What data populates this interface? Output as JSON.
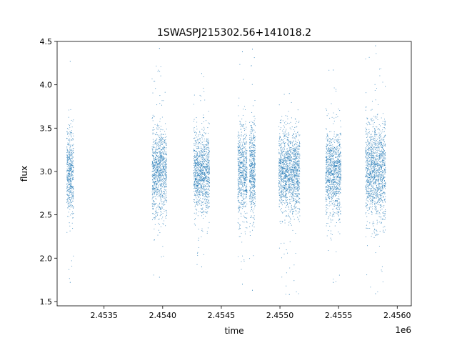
{
  "chart_data": {
    "type": "scatter",
    "title": "1SWASPJ215302.56+141018.2",
    "xlabel": "time",
    "ylabel": "flux",
    "x_offset_label": "1e6",
    "xlim": [
      2453100,
      2456120
    ],
    "ylim": [
      1.45,
      4.5
    ],
    "x_ticks": [
      2453500,
      2454000,
      2454500,
      2455000,
      2455500,
      2456000
    ],
    "x_tick_labels": [
      "2.4535",
      "2.4540",
      "2.4545",
      "2.4550",
      "2.4555",
      "2.4560"
    ],
    "y_ticks": [
      1.5,
      2.0,
      2.5,
      3.0,
      3.5,
      4.0,
      4.5
    ],
    "y_tick_labels": [
      "1.5",
      "2.0",
      "2.5",
      "3.0",
      "3.5",
      "4.0",
      "4.5"
    ],
    "grid": false,
    "legend": "none",
    "marker_color": "#1f77b4",
    "observing_seasons": [
      {
        "x_start": 2453183,
        "x_end": 2453240,
        "y_center": 3.0,
        "y_min": 1.72,
        "y_max": 4.27
      },
      {
        "x_start": 2453910,
        "x_end": 2454035,
        "y_center": 3.0,
        "y_min": 1.78,
        "y_max": 4.42
      },
      {
        "x_start": 2454265,
        "x_end": 2454400,
        "y_center": 2.98,
        "y_min": 1.9,
        "y_max": 4.13
      },
      {
        "x_start": 2454640,
        "x_end": 2454720,
        "y_center": 3.0,
        "y_min": 1.7,
        "y_max": 4.38
      },
      {
        "x_start": 2454740,
        "x_end": 2454790,
        "y_center": 3.0,
        "y_min": 1.63,
        "y_max": 4.41
      },
      {
        "x_start": 2454990,
        "x_end": 2455170,
        "y_center": 3.0,
        "y_min": 1.58,
        "y_max": 3.9
      },
      {
        "x_start": 2455390,
        "x_end": 2455520,
        "y_center": 3.0,
        "y_min": 1.72,
        "y_max": 4.17
      },
      {
        "x_start": 2455730,
        "x_end": 2455900,
        "y_center": 3.0,
        "y_min": 1.59,
        "y_max": 4.45
      }
    ]
  }
}
